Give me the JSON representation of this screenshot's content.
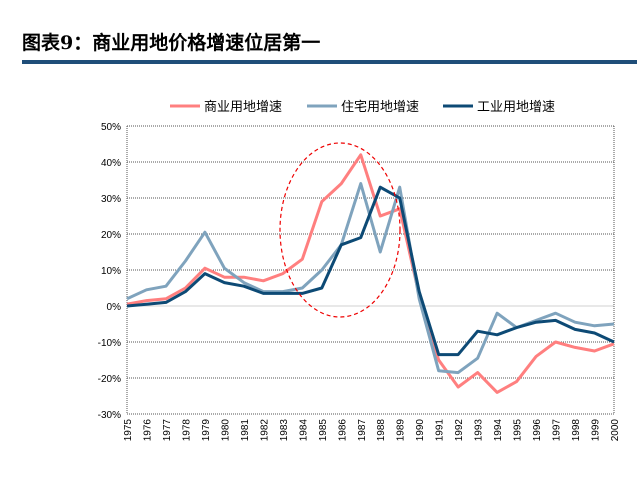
{
  "title": "图表9：商业用地价格增速位居第一",
  "chart_data": {
    "type": "line",
    "x": [
      1975,
      1976,
      1977,
      1978,
      1979,
      1980,
      1981,
      1982,
      1983,
      1984,
      1985,
      1986,
      1987,
      1988,
      1989,
      1990,
      1991,
      1992,
      1993,
      1994,
      1995,
      1996,
      1997,
      1998,
      1999,
      2000
    ],
    "ylim": [
      -30,
      50
    ],
    "yticks": [
      -30,
      -20,
      -10,
      0,
      10,
      20,
      30,
      40,
      50
    ],
    "ytick_format": "%",
    "grid": true,
    "legend": "top",
    "series": [
      {
        "name": "商业用地增速",
        "color": "#ff7f7f",
        "values": [
          0.5,
          1.5,
          2,
          5,
          10.5,
          8,
          8,
          7,
          9,
          13,
          29,
          34,
          42,
          25,
          27,
          3,
          -15,
          -22.5,
          -18.5,
          -24,
          -21,
          -14,
          -10,
          -11.5,
          -12.5,
          -10.5
        ]
      },
      {
        "name": "住宅用地增速",
        "color": "#7fa3bd",
        "values": [
          2,
          4.5,
          5.5,
          12.5,
          20.5,
          10.5,
          6.5,
          4,
          4,
          5,
          10,
          17,
          34,
          15,
          33,
          2,
          -18,
          -18.5,
          -14.5,
          -2,
          -6,
          -4,
          -2,
          -4.5,
          -5.5,
          -5
        ]
      },
      {
        "name": "工业用地增速",
        "color": "#0d4a75",
        "values": [
          0,
          0.5,
          1,
          4,
          9,
          6.5,
          5.5,
          3.5,
          3.5,
          3.5,
          5,
          17,
          19,
          33,
          30,
          4,
          -13.5,
          -13.5,
          -7,
          -8,
          -6,
          -4.5,
          -4,
          -6.5,
          -7.5,
          -10
        ]
      }
    ]
  }
}
